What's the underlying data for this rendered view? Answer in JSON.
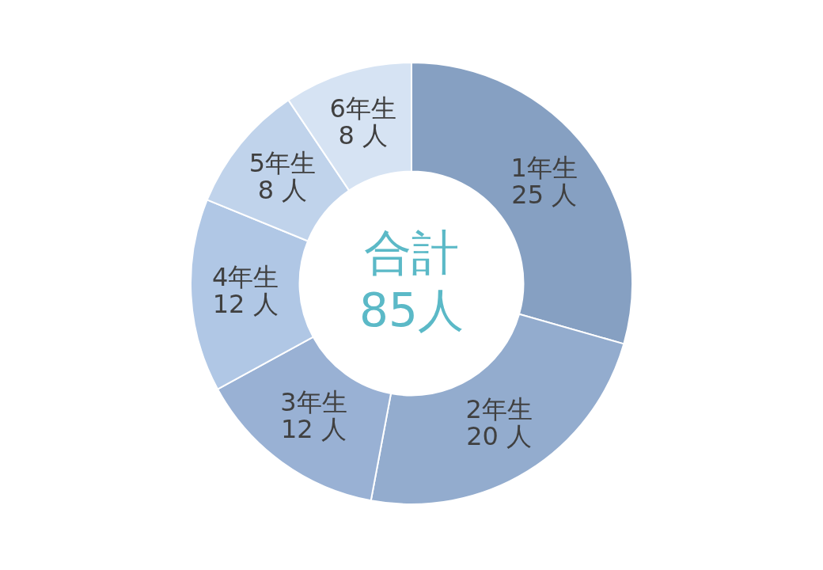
{
  "chart_data": {
    "type": "donut",
    "categories": [
      "1年生",
      "2年生",
      "3年生",
      "4年生",
      "5年生",
      "6年生"
    ],
    "values": [
      25,
      20,
      12,
      12,
      8,
      8
    ],
    "value_labels": [
      "25 人",
      "20 人",
      "12 人",
      "12 人",
      "8 人",
      "8 人"
    ],
    "colors": [
      "#86a0c2",
      "#93acce",
      "#99b1d4",
      "#b0c7e5",
      "#c0d3eb",
      "#d6e3f3"
    ],
    "annotations": [
      "合計",
      "85人"
    ]
  }
}
